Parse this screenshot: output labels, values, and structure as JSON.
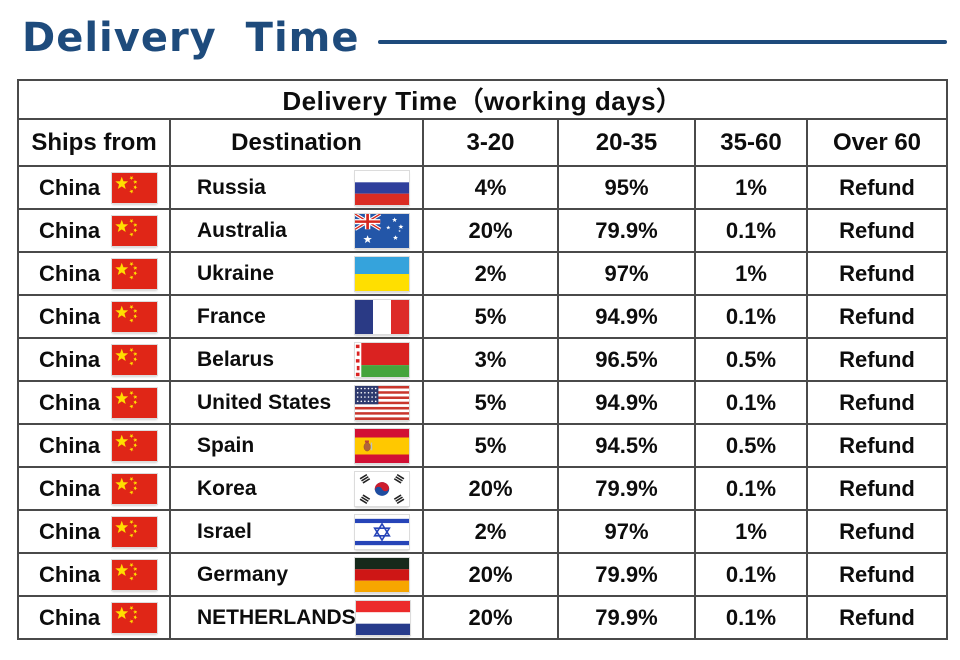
{
  "page_title": "Delivery Time",
  "colors": {
    "accent": "#1E4B7C",
    "table_border": "#4A4A4A",
    "text": "#0D0D0D"
  },
  "table": {
    "title": "Delivery Time（working days）",
    "columns": [
      "Ships from",
      "Destination",
      "3-20",
      "20-35",
      "35-60",
      "Over 60"
    ],
    "rows": [
      {
        "ships_from": "China",
        "ships_from_flag": "china",
        "destination": "Russia",
        "destination_flag": "russia",
        "pct_3_20": "4%",
        "pct_20_35": "95%",
        "pct_35_60": "1%",
        "over_60": "Refund"
      },
      {
        "ships_from": "China",
        "ships_from_flag": "china",
        "destination": "Australia",
        "destination_flag": "australia",
        "pct_3_20": "20%",
        "pct_20_35": "79.9%",
        "pct_35_60": "0.1%",
        "over_60": "Refund"
      },
      {
        "ships_from": "China",
        "ships_from_flag": "china",
        "destination": "Ukraine",
        "destination_flag": "ukraine",
        "pct_3_20": "2%",
        "pct_20_35": "97%",
        "pct_35_60": "1%",
        "over_60": "Refund"
      },
      {
        "ships_from": "China",
        "ships_from_flag": "china",
        "destination": "France",
        "destination_flag": "france",
        "pct_3_20": "5%",
        "pct_20_35": "94.9%",
        "pct_35_60": "0.1%",
        "over_60": "Refund"
      },
      {
        "ships_from": "China",
        "ships_from_flag": "china",
        "destination": "Belarus",
        "destination_flag": "belarus",
        "pct_3_20": "3%",
        "pct_20_35": "96.5%",
        "pct_35_60": "0.5%",
        "over_60": "Refund"
      },
      {
        "ships_from": "China",
        "ships_from_flag": "china",
        "destination": "United States",
        "destination_flag": "usa",
        "pct_3_20": "5%",
        "pct_20_35": "94.9%",
        "pct_35_60": "0.1%",
        "over_60": "Refund"
      },
      {
        "ships_from": "China",
        "ships_from_flag": "china",
        "destination": "Spain",
        "destination_flag": "spain",
        "pct_3_20": "5%",
        "pct_20_35": "94.5%",
        "pct_35_60": "0.5%",
        "over_60": "Refund"
      },
      {
        "ships_from": "China",
        "ships_from_flag": "china",
        "destination": "Korea",
        "destination_flag": "korea",
        "pct_3_20": "20%",
        "pct_20_35": "79.9%",
        "pct_35_60": "0.1%",
        "over_60": "Refund"
      },
      {
        "ships_from": "China",
        "ships_from_flag": "china",
        "destination": "Israel",
        "destination_flag": "israel",
        "pct_3_20": "2%",
        "pct_20_35": "97%",
        "pct_35_60": "1%",
        "over_60": "Refund"
      },
      {
        "ships_from": "China",
        "ships_from_flag": "china",
        "destination": "Germany",
        "destination_flag": "germany",
        "pct_3_20": "20%",
        "pct_20_35": "79.9%",
        "pct_35_60": "0.1%",
        "over_60": "Refund"
      },
      {
        "ships_from": "China",
        "ships_from_flag": "china",
        "destination": "NETHERLANDS",
        "destination_flag": "netherlands",
        "pct_3_20": "20%",
        "pct_20_35": "79.9%",
        "pct_35_60": "0.1%",
        "over_60": "Refund"
      }
    ]
  },
  "chart_data": {
    "type": "table",
    "title": "Delivery Time（working days）",
    "columns": [
      "Ships from",
      "Destination",
      "3-20",
      "20-35",
      "35-60",
      "Over 60"
    ],
    "rows": [
      [
        "China",
        "Russia",
        "4%",
        "95%",
        "1%",
        "Refund"
      ],
      [
        "China",
        "Australia",
        "20%",
        "79.9%",
        "0.1%",
        "Refund"
      ],
      [
        "China",
        "Ukraine",
        "2%",
        "97%",
        "1%",
        "Refund"
      ],
      [
        "China",
        "France",
        "5%",
        "94.9%",
        "0.1%",
        "Refund"
      ],
      [
        "China",
        "Belarus",
        "3%",
        "96.5%",
        "0.5%",
        "Refund"
      ],
      [
        "China",
        "United States",
        "5%",
        "94.9%",
        "0.1%",
        "Refund"
      ],
      [
        "China",
        "Spain",
        "5%",
        "94.5%",
        "0.5%",
        "Refund"
      ],
      [
        "China",
        "Korea",
        "20%",
        "79.9%",
        "0.1%",
        "Refund"
      ],
      [
        "China",
        "Israel",
        "2%",
        "97%",
        "1%",
        "Refund"
      ],
      [
        "China",
        "Germany",
        "20%",
        "79.9%",
        "0.1%",
        "Refund"
      ],
      [
        "China",
        "NETHERLANDS",
        "20%",
        "79.9%",
        "0.1%",
        "Refund"
      ]
    ]
  }
}
